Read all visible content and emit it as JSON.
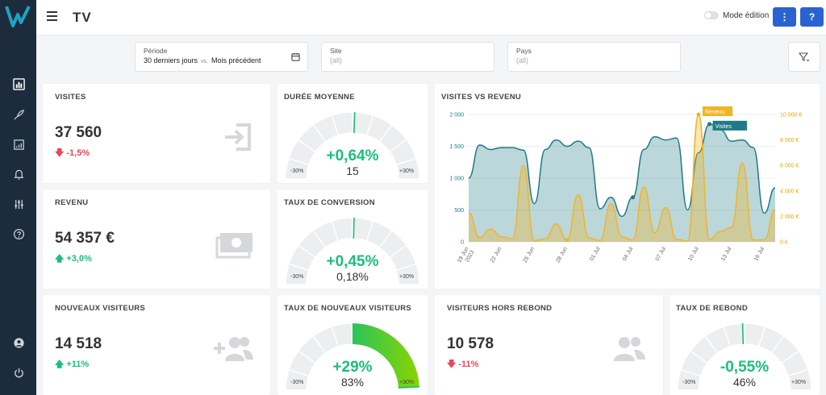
{
  "header": {
    "title": "TV",
    "edit_mode_label": "Mode édition",
    "menu_button": "⋮",
    "help_button": "?"
  },
  "sidebar": {
    "items": [
      "dashboard-icon",
      "rocket-icon",
      "report-icon",
      "bell-icon",
      "sliders-icon",
      "help-circle-icon"
    ],
    "bottom_items": [
      "user-icon",
      "power-icon"
    ]
  },
  "filters": {
    "period": {
      "label": "Période",
      "value": "30 derniers jours",
      "vs": "vs.",
      "compare": "Mois précédent"
    },
    "site": {
      "label": "Site",
      "value": "(all)"
    },
    "country": {
      "label": "Pays",
      "value": "(all)"
    }
  },
  "colors": {
    "positive": "#1abf79",
    "negative": "#e8475d",
    "series_visits": "#1f7a85",
    "series_revenue": "#f0b429",
    "accent": "#2a63d1"
  },
  "kpis": {
    "visits": {
      "title": "Visites",
      "value": "37 560",
      "change": "-1,5%",
      "trend": "down",
      "icon": "sign-in-icon"
    },
    "revenue": {
      "title": "Revenu",
      "value": "54 357 €",
      "change": "+3,0%",
      "trend": "up",
      "icon": "money-icon"
    },
    "new_visitors": {
      "title": "Nouveaux visiteurs",
      "value": "14 518",
      "change": "+11%",
      "trend": "up",
      "icon": "user-plus-icon"
    },
    "non_bounce": {
      "title": "Visiteurs hors rebond",
      "value": "10 578",
      "change": "-11%",
      "trend": "down",
      "icon": "users-icon"
    }
  },
  "gauges": {
    "avg_duration": {
      "title": "Durée moyenne",
      "pct": "+0,64%",
      "value": "15",
      "min": "-30%",
      "max": "+30%",
      "level": 0.0064
    },
    "conversion": {
      "title": "Taux de conversion",
      "pct": "+0,45%",
      "value": "0,18%",
      "min": "-30%",
      "max": "+30%",
      "level": 0.0045
    },
    "new_visitor_rate": {
      "title": "Taux de nouveaux visiteurs",
      "pct": "+29%",
      "value": "83%",
      "min": "-30%",
      "max": "+30%",
      "level": 0.29
    },
    "bounce_rate": {
      "title": "Taux de rebond",
      "pct": "-0,55%",
      "value": "46%",
      "min": "-30%",
      "max": "+30%",
      "level": -0.0055
    }
  },
  "chart_data": {
    "type": "area",
    "title": "Visites vs Revenu",
    "x": [
      "19 Jun 2023",
      "20 Jun",
      "21 Jun",
      "22 Jun",
      "23 Jun",
      "24 Jun",
      "25 Jun",
      "26 Jun",
      "27 Jun",
      "28 Jun",
      "29 Jun",
      "30 Jun",
      "01 Jul",
      "02 Jul",
      "03 Jul",
      "04 Jul",
      "05 Jul",
      "06 Jul",
      "07 Jul",
      "08 Jul",
      "09 Jul",
      "10 Jul",
      "11 Jul",
      "12 Jul",
      "13 Jul",
      "14 Jul",
      "15 Jul",
      "16 Jul",
      "17 Jul"
    ],
    "x_tick_labels": [
      "19 Jun 2023",
      "22 Jun",
      "25 Jun",
      "28 Jun",
      "01 Jul",
      "04 Jul",
      "07 Jul",
      "10 Jul",
      "13 Jul",
      "16 Jul"
    ],
    "series": [
      {
        "name": "Visites",
        "axis": "left",
        "values": [
          1000,
          1520,
          1450,
          1480,
          1480,
          1440,
          600,
          1450,
          1600,
          1500,
          1580,
          1480,
          520,
          700,
          400,
          700,
          1450,
          1650,
          1600,
          1630,
          500,
          1400,
          1850,
          1760,
          1580,
          1600,
          1480,
          450,
          850
        ]
      },
      {
        "name": "Revenu",
        "axis": "right",
        "values": [
          2300,
          350,
          1000,
          400,
          250,
          6000,
          100,
          250,
          1400,
          150,
          3700,
          300,
          100,
          3000,
          400,
          150,
          4300,
          700,
          2700,
          200,
          50,
          10000,
          200,
          800,
          1150,
          6200,
          150,
          150,
          2500
        ]
      }
    ],
    "y_left": {
      "ticks": [
        "0",
        "500",
        "1 000",
        "1 500",
        "2 000"
      ],
      "range": [
        0,
        2000
      ]
    },
    "y_right": {
      "ticks": [
        "0 €",
        "2 000 €",
        "4 000 €",
        "6 000 €",
        "8 000 €",
        "10 000 €"
      ],
      "range": [
        0,
        10000
      ]
    },
    "tooltips": [
      {
        "series": "Revenu",
        "label": "Revenu"
      },
      {
        "series": "Visites",
        "label": "Visites"
      }
    ],
    "grid": true
  }
}
